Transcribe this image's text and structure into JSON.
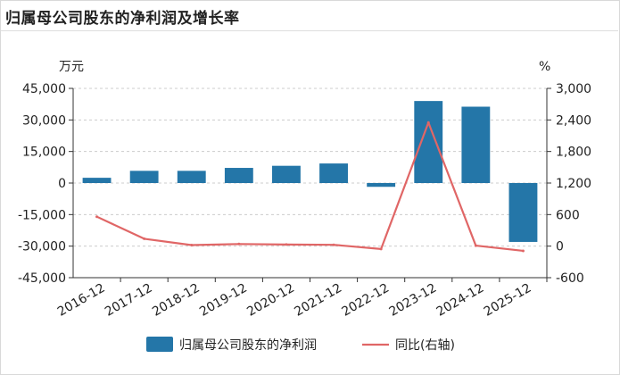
{
  "title": "归属母公司股东的净利润及增长率",
  "chart_data": {
    "type": "bar+line",
    "categories": [
      "2016-12",
      "2017-12",
      "2018-12",
      "2019-12",
      "2020-12",
      "2021-12",
      "2022-12",
      "2023-12",
      "2024-12",
      "2025-12"
    ],
    "series": [
      {
        "name": "归属母公司股东的净利润",
        "type": "bar",
        "axis": "left",
        "color": "#2476a8",
        "values": [
          2500,
          5800,
          5800,
          7200,
          8200,
          9300,
          -1800,
          39000,
          36300,
          -28000
        ]
      },
      {
        "name": "同比(右轴)",
        "type": "line",
        "axis": "right",
        "color": "#e06666",
        "values": [
          560,
          140,
          20,
          40,
          30,
          25,
          -55,
          2350,
          10,
          -90
        ]
      }
    ],
    "left_axis": {
      "unit": "万元",
      "min": -45000,
      "max": 45000,
      "ticks": [
        45000,
        30000,
        15000,
        0,
        -15000,
        -30000,
        -45000
      ],
      "tick_labels": [
        "45,000",
        "30,000",
        "15,000",
        "0",
        "-15,000",
        "-30,000",
        "-45,000"
      ]
    },
    "right_axis": {
      "unit": "%",
      "min": -600,
      "max": 3000,
      "ticks": [
        3000,
        2400,
        1800,
        1200,
        600,
        0,
        -600
      ],
      "tick_labels": [
        "3,000",
        "2,400",
        "1,800",
        "1,200",
        "600",
        "0",
        "-600"
      ]
    },
    "grid": "horizontal-dashed",
    "legend_position": "bottom"
  }
}
